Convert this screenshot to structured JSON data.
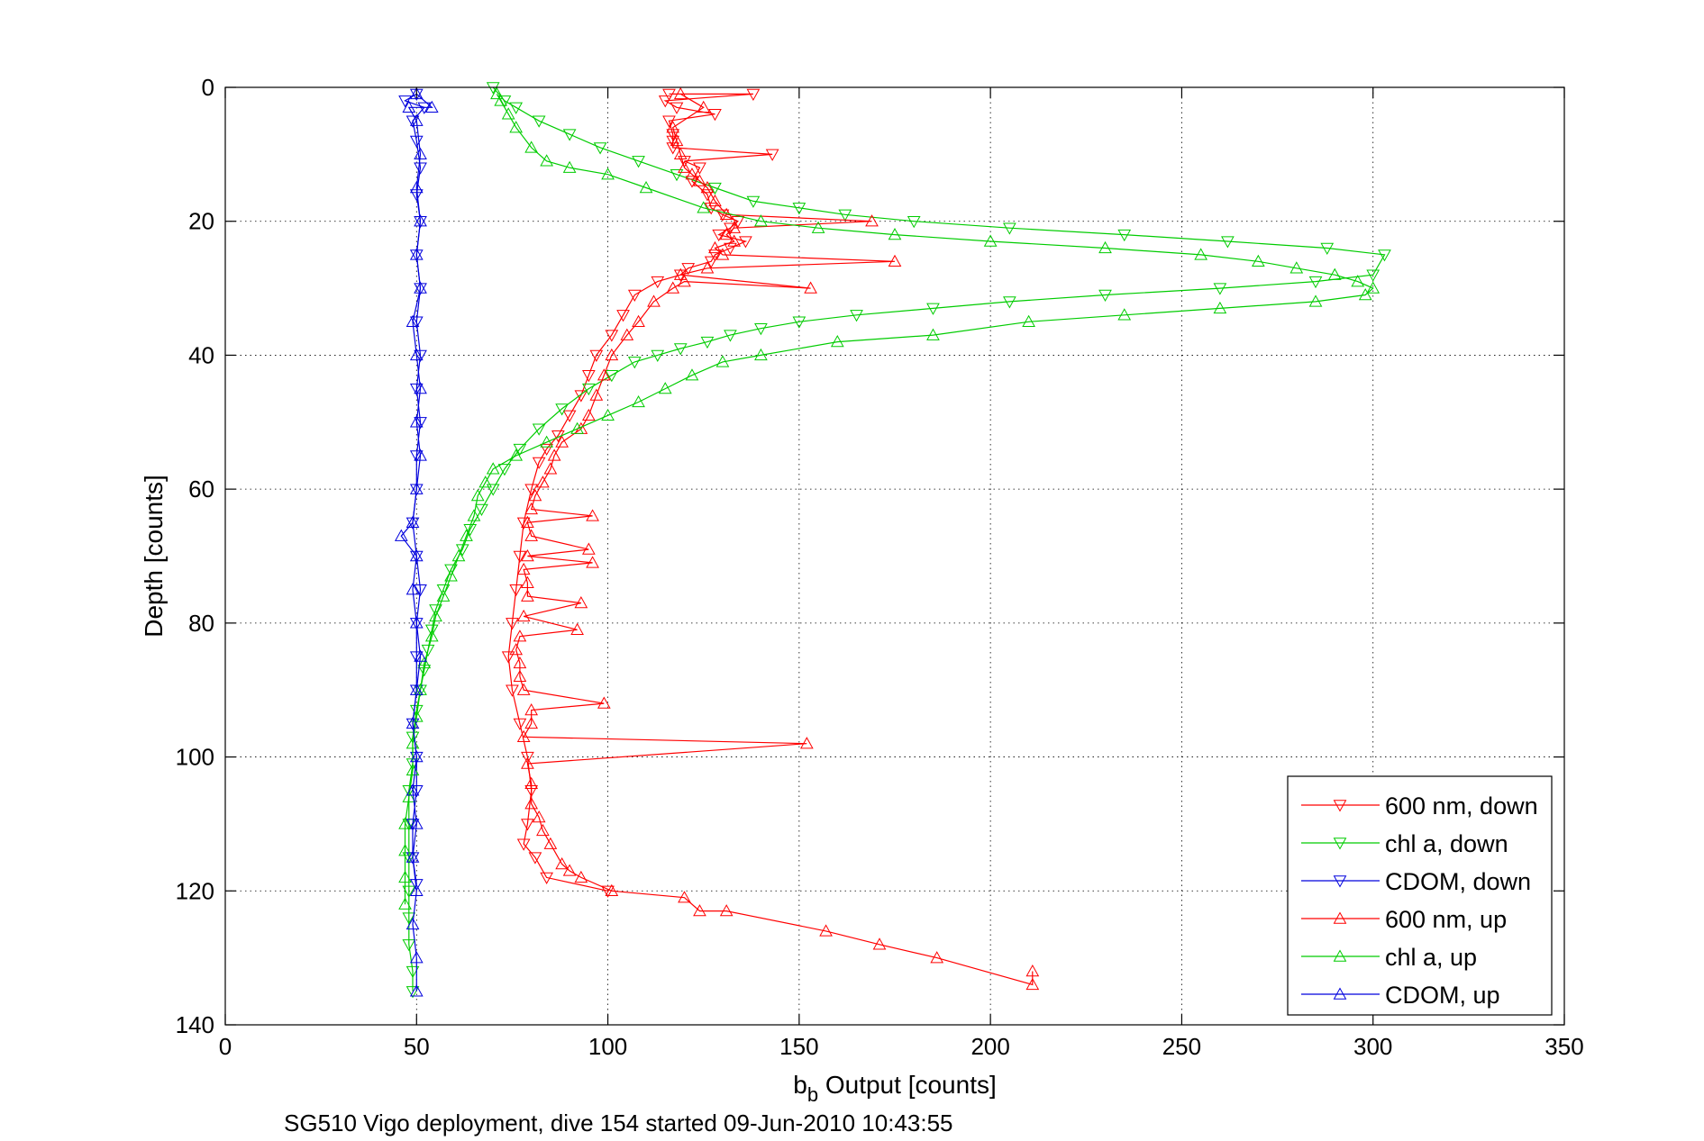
{
  "chart_data": {
    "type": "line",
    "title": "",
    "xlabel_main": "b",
    "xlabel_sub": "b",
    "xlabel_rest": " Output [counts]",
    "ylabel": "Depth [counts]",
    "caption": "SG510 Vigo deployment, dive 154 started 09-Jun-2010 10:43:55",
    "xlim": [
      0,
      350
    ],
    "ylim": [
      0,
      140
    ],
    "y_reversed": true,
    "xticks": [
      "0",
      "50",
      "100",
      "150",
      "200",
      "250",
      "300",
      "350"
    ],
    "yticks": [
      "0",
      "20",
      "40",
      "60",
      "80",
      "100",
      "120",
      "140"
    ],
    "grid": true,
    "legend_position": "bottom-right",
    "series": [
      {
        "name": "600 nm, down",
        "color": "#ff0000",
        "marker": "triangle-down",
        "points": [
          [
            116,
            1
          ],
          [
            138,
            1
          ],
          [
            115,
            2
          ],
          [
            118,
            3
          ],
          [
            128,
            4
          ],
          [
            116,
            5
          ],
          [
            117,
            7
          ],
          [
            117,
            8
          ],
          [
            117,
            9
          ],
          [
            143,
            10
          ],
          [
            120,
            11
          ],
          [
            124,
            12
          ],
          [
            122,
            14
          ],
          [
            126,
            16
          ],
          [
            127,
            18
          ],
          [
            130,
            19
          ],
          [
            134,
            20
          ],
          [
            132,
            21
          ],
          [
            129,
            22
          ],
          [
            136,
            23
          ],
          [
            132,
            24
          ],
          [
            128,
            25
          ],
          [
            127,
            26
          ],
          [
            121,
            27
          ],
          [
            119,
            28
          ],
          [
            113,
            29
          ],
          [
            107,
            31
          ],
          [
            104,
            34
          ],
          [
            101,
            37
          ],
          [
            97,
            40
          ],
          [
            95,
            43
          ],
          [
            93,
            46
          ],
          [
            90,
            49
          ],
          [
            87,
            52
          ],
          [
            84,
            54
          ],
          [
            82,
            56
          ],
          [
            80,
            60
          ],
          [
            78,
            65
          ],
          [
            77,
            70
          ],
          [
            76,
            75
          ],
          [
            75,
            80
          ],
          [
            74,
            85
          ],
          [
            75,
            90
          ],
          [
            77,
            95
          ],
          [
            79,
            100
          ],
          [
            80,
            105
          ],
          [
            79,
            110
          ],
          [
            78,
            113
          ],
          [
            81,
            115
          ],
          [
            84,
            118
          ],
          [
            100,
            120
          ]
        ]
      },
      {
        "name": "chl a, down",
        "color": "#00cc00",
        "marker": "triangle-down",
        "points": [
          [
            70,
            0
          ],
          [
            73,
            2
          ],
          [
            76,
            3
          ],
          [
            82,
            5
          ],
          [
            90,
            7
          ],
          [
            98,
            9
          ],
          [
            108,
            11
          ],
          [
            118,
            13
          ],
          [
            128,
            15
          ],
          [
            138,
            17
          ],
          [
            150,
            18
          ],
          [
            162,
            19
          ],
          [
            180,
            20
          ],
          [
            205,
            21
          ],
          [
            235,
            22
          ],
          [
            262,
            23
          ],
          [
            288,
            24
          ],
          [
            303,
            25
          ],
          [
            300,
            28
          ],
          [
            285,
            29
          ],
          [
            260,
            30
          ],
          [
            230,
            31
          ],
          [
            205,
            32
          ],
          [
            185,
            33
          ],
          [
            165,
            34
          ],
          [
            150,
            35
          ],
          [
            140,
            36
          ],
          [
            132,
            37
          ],
          [
            126,
            38
          ],
          [
            119,
            39
          ],
          [
            113,
            40
          ],
          [
            107,
            41
          ],
          [
            101,
            43
          ],
          [
            95,
            45
          ],
          [
            88,
            48
          ],
          [
            82,
            51
          ],
          [
            77,
            54
          ],
          [
            73,
            57
          ],
          [
            70,
            60
          ],
          [
            67,
            63
          ],
          [
            64,
            66
          ],
          [
            62,
            69
          ],
          [
            59,
            72
          ],
          [
            57,
            75
          ],
          [
            55,
            78
          ],
          [
            54,
            81
          ],
          [
            53,
            84
          ],
          [
            52,
            87
          ],
          [
            51,
            90
          ],
          [
            50,
            93
          ],
          [
            49,
            97
          ],
          [
            49,
            101
          ],
          [
            48,
            105
          ],
          [
            48,
            110
          ],
          [
            48,
            115
          ],
          [
            48,
            120
          ],
          [
            48,
            124
          ],
          [
            48,
            128
          ],
          [
            49,
            132
          ],
          [
            49,
            135
          ]
        ]
      },
      {
        "name": "CDOM, down",
        "color": "#0000dd",
        "marker": "triangle-down",
        "points": [
          [
            50,
            1
          ],
          [
            47,
            2
          ],
          [
            52,
            3
          ],
          [
            49,
            5
          ],
          [
            50,
            8
          ],
          [
            51,
            12
          ],
          [
            50,
            16
          ],
          [
            51,
            20
          ],
          [
            50,
            25
          ],
          [
            51,
            30
          ],
          [
            50,
            35
          ],
          [
            51,
            40
          ],
          [
            50,
            45
          ],
          [
            51,
            50
          ],
          [
            50,
            55
          ],
          [
            50,
            60
          ],
          [
            49,
            65
          ],
          [
            50,
            70
          ],
          [
            51,
            75
          ],
          [
            50,
            80
          ],
          [
            50,
            85
          ],
          [
            50,
            90
          ],
          [
            49,
            95
          ],
          [
            50,
            100
          ],
          [
            50,
            105
          ],
          [
            49,
            110
          ],
          [
            49,
            115
          ],
          [
            50,
            119
          ]
        ]
      },
      {
        "name": "600 nm, up",
        "color": "#ff0000",
        "marker": "triangle-up",
        "points": [
          [
            211,
            132
          ],
          [
            211,
            134
          ],
          [
            186,
            130
          ],
          [
            171,
            128
          ],
          [
            157,
            126
          ],
          [
            131,
            123
          ],
          [
            124,
            123
          ],
          [
            120,
            121
          ],
          [
            101,
            120
          ],
          [
            93,
            118
          ],
          [
            90,
            117
          ],
          [
            88,
            116
          ],
          [
            85,
            113
          ],
          [
            83,
            111
          ],
          [
            82,
            109
          ],
          [
            80,
            107
          ],
          [
            80,
            104
          ],
          [
            79,
            101
          ],
          [
            152,
            98
          ],
          [
            78,
            97
          ],
          [
            80,
            95
          ],
          [
            80,
            93
          ],
          [
            99,
            92
          ],
          [
            78,
            90
          ],
          [
            77,
            88
          ],
          [
            77,
            86
          ],
          [
            76,
            84
          ],
          [
            77,
            82
          ],
          [
            92,
            81
          ],
          [
            78,
            79
          ],
          [
            93,
            77
          ],
          [
            79,
            76
          ],
          [
            79,
            74
          ],
          [
            78,
            72
          ],
          [
            96,
            71
          ],
          [
            79,
            70
          ],
          [
            95,
            69
          ],
          [
            80,
            67
          ],
          [
            79,
            65
          ],
          [
            96,
            64
          ],
          [
            80,
            63
          ],
          [
            81,
            61
          ],
          [
            83,
            59
          ],
          [
            85,
            57
          ],
          [
            86,
            55
          ],
          [
            88,
            53
          ],
          [
            93,
            51
          ],
          [
            95,
            49
          ],
          [
            97,
            46
          ],
          [
            99,
            43
          ],
          [
            101,
            40
          ],
          [
            105,
            37
          ],
          [
            108,
            35
          ],
          [
            112,
            32
          ],
          [
            117,
            30
          ],
          [
            120,
            29
          ],
          [
            153,
            30
          ],
          [
            119,
            28
          ],
          [
            126,
            27
          ],
          [
            175,
            26
          ],
          [
            130,
            25
          ],
          [
            128,
            24
          ],
          [
            133,
            23
          ],
          [
            131,
            22
          ],
          [
            133,
            21
          ],
          [
            169,
            20
          ],
          [
            131,
            19
          ],
          [
            128,
            17
          ],
          [
            126,
            15
          ],
          [
            124,
            14
          ],
          [
            122,
            13
          ],
          [
            120,
            12
          ],
          [
            119,
            10
          ],
          [
            118,
            8
          ],
          [
            117,
            6
          ],
          [
            125,
            3
          ],
          [
            119,
            1
          ]
        ]
      },
      {
        "name": "chl a, up",
        "color": "#00cc00",
        "marker": "triangle-up",
        "points": [
          [
            47,
            122
          ],
          [
            47,
            118
          ],
          [
            47,
            114
          ],
          [
            47,
            110
          ],
          [
            48,
            106
          ],
          [
            49,
            102
          ],
          [
            49,
            98
          ],
          [
            50,
            94
          ],
          [
            51,
            90
          ],
          [
            52,
            86
          ],
          [
            54,
            82
          ],
          [
            55,
            79
          ],
          [
            57,
            76
          ],
          [
            59,
            73
          ],
          [
            61,
            70
          ],
          [
            63,
            67
          ],
          [
            65,
            64
          ],
          [
            66,
            61
          ],
          [
            68,
            59
          ],
          [
            70,
            57
          ],
          [
            76,
            55
          ],
          [
            84,
            53
          ],
          [
            92,
            51
          ],
          [
            100,
            49
          ],
          [
            108,
            47
          ],
          [
            115,
            45
          ],
          [
            122,
            43
          ],
          [
            130,
            41
          ],
          [
            140,
            40
          ],
          [
            160,
            38
          ],
          [
            185,
            37
          ],
          [
            210,
            35
          ],
          [
            235,
            34
          ],
          [
            260,
            33
          ],
          [
            285,
            32
          ],
          [
            298,
            31
          ],
          [
            300,
            30
          ],
          [
            296,
            29
          ],
          [
            290,
            28
          ],
          [
            280,
            27
          ],
          [
            270,
            26
          ],
          [
            255,
            25
          ],
          [
            230,
            24
          ],
          [
            200,
            23
          ],
          [
            175,
            22
          ],
          [
            155,
            21
          ],
          [
            140,
            20
          ],
          [
            125,
            18
          ],
          [
            110,
            15
          ],
          [
            100,
            13
          ],
          [
            90,
            12
          ],
          [
            84,
            11
          ],
          [
            80,
            9
          ],
          [
            76,
            6
          ],
          [
            74,
            4
          ],
          [
            72,
            2
          ],
          [
            71,
            1
          ]
        ]
      },
      {
        "name": "CDOM, up",
        "color": "#0000dd",
        "marker": "triangle-up",
        "points": [
          [
            50,
            135
          ],
          [
            50,
            130
          ],
          [
            49,
            125
          ],
          [
            50,
            120
          ],
          [
            49,
            115
          ],
          [
            50,
            110
          ],
          [
            49,
            105
          ],
          [
            50,
            100
          ],
          [
            49,
            95
          ],
          [
            50,
            90
          ],
          [
            51,
            85
          ],
          [
            50,
            80
          ],
          [
            49,
            75
          ],
          [
            50,
            70
          ],
          [
            46,
            67
          ],
          [
            49,
            65
          ],
          [
            50,
            60
          ],
          [
            51,
            55
          ],
          [
            50,
            50
          ],
          [
            51,
            45
          ],
          [
            50,
            40
          ],
          [
            49,
            35
          ],
          [
            51,
            30
          ],
          [
            50,
            25
          ],
          [
            51,
            20
          ],
          [
            50,
            15
          ],
          [
            51,
            10
          ],
          [
            50,
            5
          ],
          [
            48,
            3
          ],
          [
            54,
            3
          ],
          [
            50,
            1
          ]
        ]
      }
    ]
  }
}
